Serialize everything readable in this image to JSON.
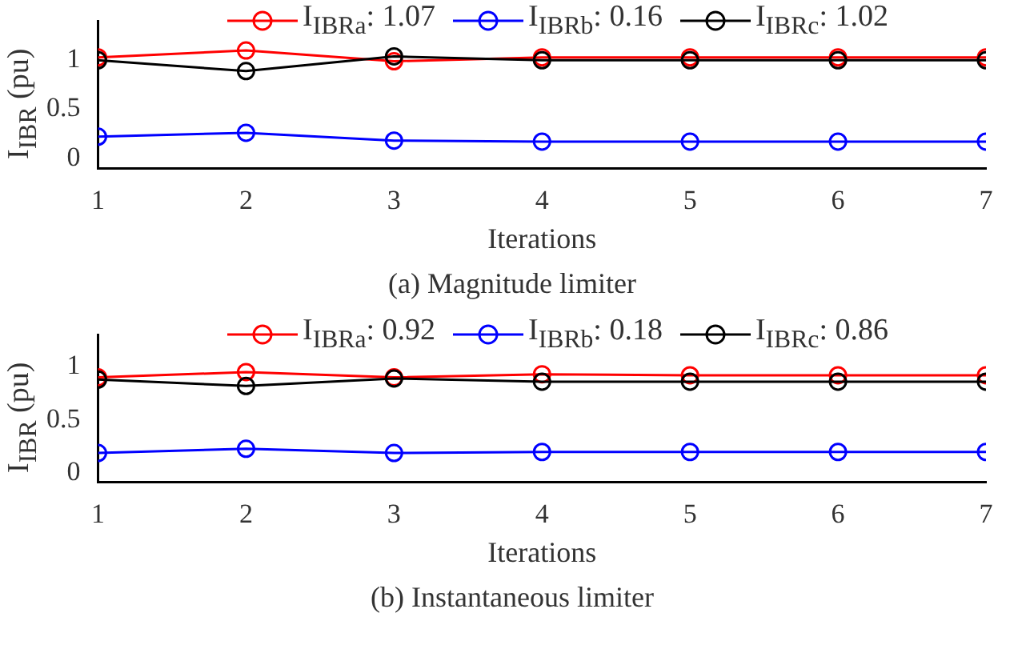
{
  "chart_data": [
    {
      "type": "line",
      "title": "(a) Magnitude limiter",
      "xlabel": "Iterations",
      "ylabel": "I$_{IBR}$ (pu)",
      "x": [
        1,
        2,
        3,
        4,
        5,
        6,
        7
      ],
      "xlim": [
        1,
        7
      ],
      "xticks": [
        1,
        2,
        3,
        4,
        5,
        6,
        7
      ],
      "ylim": [
        -0.1,
        1.4
      ],
      "yticks": [
        0,
        0.5,
        1
      ],
      "grid": false,
      "legend": "top",
      "marker": "circle",
      "line_style": "solid",
      "series": [
        {
          "name": "I$_{IBRa}$: 1.07",
          "color": "#ff0000",
          "values": [
            1.03,
            1.1,
            0.99,
            1.03,
            1.03,
            1.03,
            1.03
          ]
        },
        {
          "name": "I$_{IBRb}$: 0.16",
          "color": "#0000ff",
          "values": [
            0.22,
            0.26,
            0.18,
            0.17,
            0.17,
            0.17,
            0.17
          ]
        },
        {
          "name": "I$_{IBRc}$: 1.02",
          "color": "#000000",
          "values": [
            1.0,
            0.89,
            1.04,
            1.0,
            1.0,
            1.0,
            1.0
          ]
        }
      ]
    },
    {
      "type": "line",
      "title": "(b) Instantaneous limiter",
      "xlabel": "Iterations",
      "ylabel": "I$_{IBR}$ (pu)",
      "x": [
        1,
        2,
        3,
        4,
        5,
        6,
        7
      ],
      "xlim": [
        1,
        7
      ],
      "xticks": [
        1,
        2,
        3,
        4,
        5,
        6,
        7
      ],
      "ylim": [
        -0.08,
        1.3
      ],
      "yticks": [
        0,
        0.5,
        1
      ],
      "grid": false,
      "legend": "top",
      "marker": "circle",
      "line_style": "solid",
      "series": [
        {
          "name": "I$_{IBRa}$: 0.92",
          "color": "#ff0000",
          "values": [
            0.9,
            0.95,
            0.9,
            0.93,
            0.92,
            0.92,
            0.92
          ]
        },
        {
          "name": "I$_{IBRb}$: 0.18",
          "color": "#0000ff",
          "values": [
            0.19,
            0.23,
            0.19,
            0.2,
            0.2,
            0.2,
            0.2
          ]
        },
        {
          "name": "I$_{IBRc}$: 0.86",
          "color": "#000000",
          "values": [
            0.88,
            0.82,
            0.89,
            0.86,
            0.86,
            0.86,
            0.86
          ]
        }
      ]
    }
  ]
}
